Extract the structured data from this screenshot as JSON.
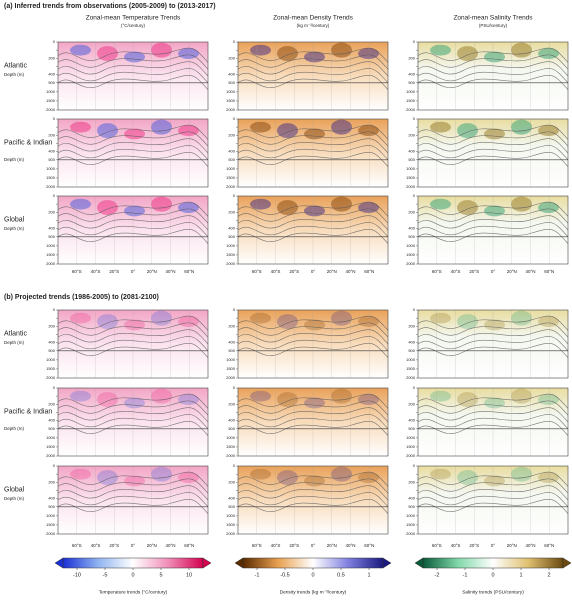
{
  "sections": [
    {
      "title": "(a) Inferred trends from observations (2005-2009) to (2013-2017)"
    },
    {
      "title": "(b) Projected trends (1986-2005) to (2081-2100)"
    }
  ],
  "columns": [
    {
      "title": "Zonal-mean Temperature Trends",
      "units": "(°C/century)"
    },
    {
      "title": "Zonal-mean Density Trends",
      "units": "(kg m⁻³/century)"
    },
    {
      "title": "Zonal-mean Salinity Trends",
      "units": "(PSU/century)"
    }
  ],
  "rows": [
    {
      "label": "Atlantic",
      "units": "Depth (m)"
    },
    {
      "label": "Pacific & Indian",
      "units": "Depth (m)"
    },
    {
      "label": "Global",
      "units": "Depth (m)"
    }
  ],
  "depth_ticks": [
    0,
    100,
    200,
    300,
    400,
    500,
    1000,
    1500,
    2000
  ],
  "lat_ticks": [
    "60°S",
    "40°S",
    "20°S",
    "0°",
    "20°N",
    "40°N",
    "60°N"
  ],
  "colorbars": [
    {
      "label": "Temperature trends (°C/century)",
      "ticks": [
        -10,
        -5,
        0,
        5,
        10
      ],
      "lim": [
        -12.5,
        12.5
      ],
      "colors": [
        "#1a2fd6",
        "#8fb3f0",
        "#ffffff",
        "#f08fb8",
        "#d4004f"
      ]
    },
    {
      "label": "Density trends (kg m⁻³/century)",
      "ticks": [
        -1,
        -0.5,
        0,
        0.5,
        1
      ],
      "lim": [
        -1.25,
        1.25
      ],
      "colors": [
        "#5a2a00",
        "#e8a050",
        "#ffffff",
        "#8080e0",
        "#1a1a80"
      ]
    },
    {
      "label": "Salinity trends (PSU/century)",
      "ticks": [
        -2,
        -1,
        0,
        1,
        2
      ],
      "lim": [
        -2.5,
        2.5
      ],
      "colors": [
        "#0a5a3a",
        "#80d8a8",
        "#ffffff",
        "#e0c070",
        "#6a4a10"
      ]
    }
  ]
}
